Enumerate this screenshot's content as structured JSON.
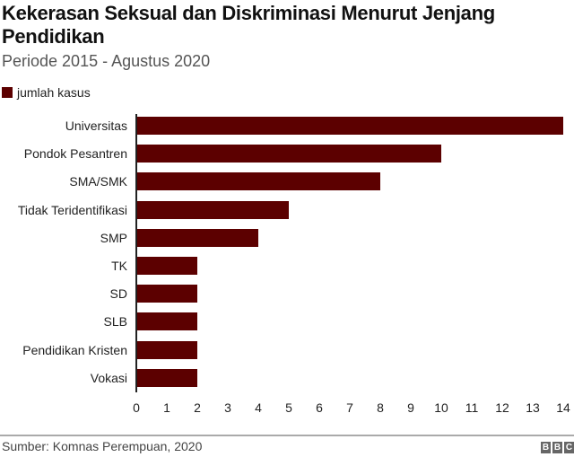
{
  "title": "Kekerasan Seksual dan Diskriminasi Menurut Jenjang Pendidikan",
  "subtitle": "Periode 2015 - Agustus 2020",
  "legend": {
    "label": "jumlah kasus",
    "color": "#5c0000"
  },
  "source": "Sumber: Komnas Perempuan, 2020",
  "logo": [
    "B",
    "B",
    "C"
  ],
  "chart_data": {
    "type": "bar",
    "orientation": "horizontal",
    "title": "Kekerasan Seksual dan Diskriminasi Menurut Jenjang Pendidikan",
    "subtitle": "Periode 2015 - Agustus 2020",
    "categories": [
      "Universitas",
      "Pondok Pesantren",
      "SMA/SMK",
      "Tidak Teridentifikasi",
      "SMP",
      "TK",
      "SD",
      "SLB",
      "Pendidikan Kristen",
      "Vokasi"
    ],
    "series": [
      {
        "name": "jumlah kasus",
        "values": [
          14,
          10,
          8,
          5,
          4,
          2,
          2,
          2,
          2,
          2
        ],
        "color": "#5c0000"
      }
    ],
    "xlabel": "",
    "ylabel": "",
    "xlim": [
      0,
      14
    ],
    "xticks": [
      "0",
      "1",
      "2",
      "3",
      "4",
      "5",
      "6",
      "7",
      "8",
      "9",
      "10",
      "11",
      "12",
      "13",
      "14"
    ],
    "grid": false,
    "legend_position": "top-left"
  }
}
